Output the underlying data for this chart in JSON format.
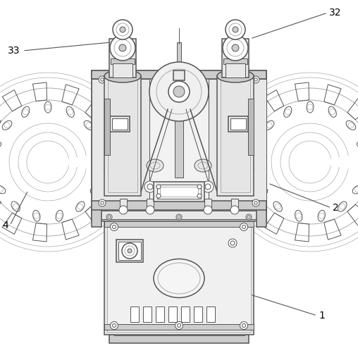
{
  "bg_color": "#ffffff",
  "line_color": "#555555",
  "light_gray": "#aaaaaa",
  "mid_gray": "#888888",
  "fill_light": "#e8e8e8",
  "fill_mid": "#cccccc",
  "fill_dark": "#bbbbbb"
}
